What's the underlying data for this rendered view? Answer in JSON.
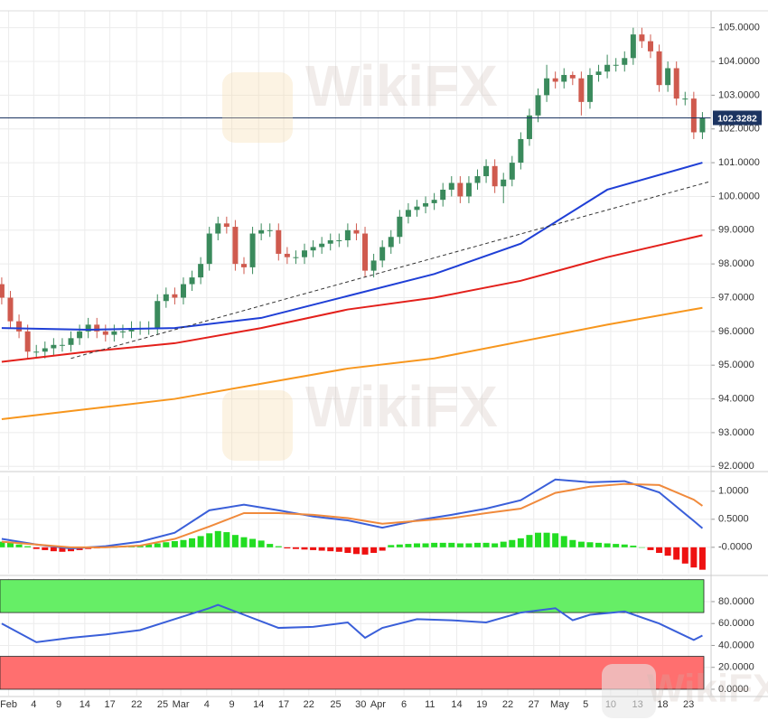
{
  "watermark": "WikiFX",
  "chart_data": [
    {
      "type": "candlestick",
      "up_color": "#3a8a5c",
      "down_color": "#cf5a4e",
      "open": [
        97.4,
        97.0,
        96.3,
        96.0,
        95.4,
        95.4,
        95.5,
        95.6,
        95.6,
        95.8,
        96.0,
        96.2,
        96.0,
        95.9,
        96.0,
        96.0,
        96.1,
        96.1,
        96.1,
        96.9,
        97.1,
        97.0,
        97.4,
        97.6,
        98.0,
        98.9,
        99.2,
        99.1,
        98.0,
        97.9,
        98.9,
        99.0,
        99.0,
        98.3,
        98.2,
        98.2,
        98.4,
        98.5,
        98.6,
        98.7,
        98.7,
        99.0,
        98.9,
        97.8,
        98.1,
        98.5,
        98.8,
        99.4,
        99.6,
        99.7,
        99.8,
        99.9,
        100.2,
        100.4,
        100.0,
        100.4,
        100.6,
        100.9,
        100.3,
        100.5,
        101.0,
        101.7,
        102.4,
        103.0,
        103.5,
        103.4,
        103.6,
        103.5,
        102.8,
        103.6,
        103.7,
        103.9,
        103.9,
        104.1,
        104.8,
        104.6,
        104.3,
        103.3,
        103.8,
        102.9,
        102.9,
        101.9
      ],
      "high": [
        97.6,
        97.2,
        96.5,
        96.2,
        95.6,
        95.7,
        95.8,
        95.8,
        96.0,
        96.2,
        96.4,
        96.4,
        96.2,
        96.2,
        96.2,
        96.3,
        96.3,
        96.3,
        97.1,
        97.3,
        97.3,
        97.6,
        97.8,
        98.2,
        99.1,
        99.4,
        99.4,
        99.3,
        98.2,
        99.1,
        99.2,
        99.2,
        99.2,
        98.5,
        98.4,
        98.6,
        98.7,
        98.8,
        98.9,
        98.9,
        99.2,
        99.2,
        99.1,
        98.3,
        98.7,
        99.0,
        99.6,
        99.8,
        99.9,
        100.0,
        100.1,
        100.4,
        100.6,
        100.6,
        100.6,
        100.8,
        101.1,
        101.1,
        100.7,
        101.2,
        101.9,
        102.6,
        103.2,
        103.9,
        103.7,
        103.8,
        103.7,
        103.7,
        103.8,
        103.9,
        104.2,
        104.1,
        104.3,
        105.0,
        105.0,
        104.8,
        104.5,
        104.0,
        104.0,
        103.1,
        103.1,
        102.5
      ],
      "low": [
        96.8,
        96.1,
        95.8,
        95.2,
        95.2,
        95.2,
        95.3,
        95.4,
        95.4,
        95.6,
        95.8,
        95.8,
        95.7,
        95.7,
        95.8,
        95.8,
        95.9,
        95.9,
        95.9,
        96.7,
        96.8,
        96.8,
        97.2,
        97.4,
        97.8,
        98.7,
        98.9,
        97.8,
        97.7,
        97.7,
        98.7,
        98.8,
        98.1,
        98.0,
        98.0,
        98.0,
        98.2,
        98.3,
        98.4,
        98.5,
        98.5,
        98.7,
        97.6,
        97.6,
        97.9,
        98.3,
        98.6,
        99.2,
        99.4,
        99.5,
        99.6,
        99.7,
        100.0,
        99.8,
        99.8,
        100.2,
        100.4,
        100.1,
        99.8,
        100.3,
        100.8,
        101.5,
        102.2,
        102.8,
        103.2,
        103.2,
        103.3,
        102.4,
        102.6,
        103.4,
        103.5,
        103.7,
        103.7,
        103.9,
        104.4,
        104.1,
        103.1,
        103.1,
        102.7,
        102.7,
        101.7,
        101.7
      ],
      "close": [
        97.0,
        96.3,
        96.0,
        95.4,
        95.4,
        95.5,
        95.6,
        95.6,
        95.8,
        96.0,
        96.2,
        96.0,
        95.9,
        96.0,
        96.0,
        96.1,
        96.1,
        96.1,
        96.9,
        97.1,
        97.0,
        97.4,
        97.6,
        98.0,
        98.9,
        99.2,
        99.1,
        98.0,
        97.9,
        98.9,
        99.0,
        99.0,
        98.3,
        98.2,
        98.2,
        98.4,
        98.5,
        98.6,
        98.7,
        98.7,
        99.0,
        98.9,
        97.8,
        98.1,
        98.5,
        98.8,
        99.4,
        99.6,
        99.7,
        99.8,
        99.9,
        100.2,
        100.4,
        100.0,
        100.4,
        100.6,
        100.9,
        100.3,
        100.5,
        101.0,
        101.7,
        102.4,
        103.0,
        103.5,
        103.4,
        103.6,
        103.5,
        102.8,
        103.6,
        103.7,
        103.9,
        103.9,
        104.1,
        104.8,
        104.6,
        104.3,
        103.3,
        103.8,
        102.9,
        102.9,
        101.9,
        102.33
      ],
      "series": [
        {
          "color": "#1f3fd6",
          "x": [
            0,
            10,
            20,
            30,
            40,
            50,
            60,
            70,
            81
          ],
          "values": [
            96.1,
            96.05,
            96.1,
            96.4,
            97.05,
            97.7,
            98.6,
            100.2,
            101.0
          ]
        },
        {
          "color": "#e3201b",
          "x": [
            0,
            10,
            20,
            30,
            40,
            50,
            60,
            70,
            81
          ],
          "values": [
            95.1,
            95.4,
            95.65,
            96.1,
            96.65,
            97.0,
            97.5,
            98.2,
            98.85
          ]
        },
        {
          "color": "#f7961d",
          "x": [
            0,
            10,
            20,
            30,
            40,
            50,
            60,
            70,
            81
          ],
          "values": [
            93.4,
            93.7,
            94.0,
            94.45,
            94.9,
            95.2,
            95.7,
            96.2,
            96.7
          ]
        },
        {
          "color": "#333333",
          "dash": true,
          "x": [
            8,
            82
          ],
          "values": [
            95.2,
            100.45
          ]
        }
      ],
      "last_price": 102.3282,
      "last_price_color": "#1c3461",
      "xlim": [
        -0.2,
        82
      ],
      "ylim": [
        91.9,
        105.5
      ],
      "yticks": [
        {
          "value": 92,
          "label": "92.0000"
        },
        {
          "value": 93,
          "label": "93.0000"
        },
        {
          "value": 94,
          "label": "94.0000"
        },
        {
          "value": 95,
          "label": "95.0000"
        },
        {
          "value": 96,
          "label": "96.0000"
        },
        {
          "value": 97,
          "label": "97.0000"
        },
        {
          "value": 98,
          "label": "98.0000"
        },
        {
          "value": 99,
          "label": "99.0000"
        },
        {
          "value": 100,
          "label": "100.0000"
        },
        {
          "value": 101,
          "label": "101.0000"
        },
        {
          "value": 102,
          "label": "102.0000"
        },
        {
          "value": 103,
          "label": "103.0000"
        },
        {
          "value": 104,
          "label": "104.0000"
        },
        {
          "value": 105,
          "label": "105.0000"
        }
      ],
      "grid": true
    },
    {
      "type": "macd",
      "hist": [
        0.1,
        0.08,
        0.05,
        0.02,
        -0.03,
        -0.05,
        -0.07,
        -0.08,
        -0.07,
        -0.05,
        -0.03,
        -0.02,
        -0.01,
        0.0,
        0.01,
        0.02,
        0.03,
        0.05,
        0.07,
        0.09,
        0.11,
        0.13,
        0.16,
        0.2,
        0.25,
        0.29,
        0.27,
        0.22,
        0.18,
        0.15,
        0.12,
        0.06,
        0.02,
        -0.02,
        -0.03,
        -0.04,
        -0.05,
        -0.06,
        -0.07,
        -0.08,
        -0.1,
        -0.12,
        -0.13,
        -0.1,
        -0.06,
        0.04,
        0.05,
        0.06,
        0.07,
        0.07,
        0.08,
        0.08,
        0.08,
        0.07,
        0.07,
        0.08,
        0.08,
        0.07,
        0.1,
        0.13,
        0.16,
        0.22,
        0.26,
        0.26,
        0.25,
        0.2,
        0.13,
        0.1,
        0.09,
        0.08,
        0.07,
        0.06,
        0.05,
        0.03,
        0.0,
        -0.05,
        -0.1,
        -0.15,
        -0.22,
        -0.29,
        -0.36,
        -0.4
      ],
      "hist_up_color": "#22dd22",
      "hist_down_color": "#ee1111",
      "series": [
        {
          "color": "#3a5fd9",
          "x": [
            0,
            4,
            8,
            12,
            16,
            20,
            24,
            28,
            32,
            36,
            40,
            44,
            48,
            52,
            56,
            60,
            64,
            68,
            72,
            76,
            80,
            81
          ],
          "values": [
            0.15,
            0.05,
            -0.02,
            0.02,
            0.1,
            0.26,
            0.66,
            0.76,
            0.66,
            0.55,
            0.48,
            0.35,
            0.48,
            0.58,
            0.69,
            0.84,
            1.21,
            1.16,
            1.18,
            0.98,
            0.47,
            0.34
          ]
        },
        {
          "color": "#f08a3c",
          "x": [
            0,
            4,
            8,
            12,
            16,
            20,
            24,
            28,
            32,
            36,
            40,
            44,
            48,
            52,
            56,
            60,
            64,
            68,
            72,
            76,
            80,
            81
          ],
          "values": [
            0.1,
            0.05,
            0.0,
            0.0,
            0.03,
            0.15,
            0.37,
            0.61,
            0.61,
            0.58,
            0.52,
            0.42,
            0.47,
            0.52,
            0.61,
            0.69,
            0.97,
            1.08,
            1.13,
            1.11,
            0.85,
            0.74
          ]
        }
      ],
      "xlim": [
        -0.2,
        82
      ],
      "ylim": [
        -0.47,
        1.27
      ],
      "yticks": [
        {
          "value": 0,
          "label": "-0.0000"
        },
        {
          "value": 0.5,
          "label": "0.5000"
        },
        {
          "value": 1,
          "label": "1.0000"
        }
      ],
      "grid": true
    },
    {
      "type": "rsi",
      "bands": [
        {
          "range": [
            70,
            100
          ],
          "color": "#66ee66"
        },
        {
          "range": [
            0,
            30
          ],
          "color": "#ff6f6f"
        }
      ],
      "series": [
        {
          "color": "#3a5fd9",
          "x": [
            0,
            4,
            8,
            12,
            16,
            20,
            24,
            25,
            28,
            32,
            36,
            40,
            42,
            44,
            48,
            52,
            56,
            60,
            64,
            66,
            68,
            72,
            76,
            80,
            81
          ],
          "values": [
            60,
            43,
            47,
            50,
            54,
            64,
            74,
            77,
            68,
            56,
            57,
            61,
            47,
            56,
            64,
            63,
            61,
            70,
            74,
            63,
            68,
            71,
            60,
            45,
            49
          ]
        }
      ],
      "xlim": [
        -0.2,
        82
      ],
      "ylim": [
        -5.8,
        101.4
      ],
      "yticks": [
        {
          "value": 0,
          "label": "0.0000"
        },
        {
          "value": 20,
          "label": "20.0000"
        },
        {
          "value": 40,
          "label": "40.0000"
        },
        {
          "value": 60,
          "label": "60.0000"
        },
        {
          "value": 80,
          "label": "80.0000"
        }
      ],
      "xticks": [
        {
          "value": 0.8,
          "label": "Feb"
        },
        {
          "value": 3.7,
          "label": "4"
        },
        {
          "value": 6.6,
          "label": "9"
        },
        {
          "value": 9.6,
          "label": "14"
        },
        {
          "value": 12.5,
          "label": "17"
        },
        {
          "value": 15.6,
          "label": "22"
        },
        {
          "value": 18.6,
          "label": "25"
        },
        {
          "value": 20.7,
          "label": "Mar"
        },
        {
          "value": 23.7,
          "label": "4"
        },
        {
          "value": 26.6,
          "label": "9"
        },
        {
          "value": 29.7,
          "label": "14"
        },
        {
          "value": 32.6,
          "label": "17"
        },
        {
          "value": 35.5,
          "label": "22"
        },
        {
          "value": 38.6,
          "label": "25"
        },
        {
          "value": 41.5,
          "label": "30"
        },
        {
          "value": 43.5,
          "label": "Apr"
        },
        {
          "value": 46.5,
          "label": "6"
        },
        {
          "value": 49.5,
          "label": "11"
        },
        {
          "value": 52.6,
          "label": "14"
        },
        {
          "value": 55.5,
          "label": "19"
        },
        {
          "value": 58.5,
          "label": "22"
        },
        {
          "value": 61.5,
          "label": "27"
        },
        {
          "value": 64.5,
          "label": "May"
        },
        {
          "value": 67.5,
          "label": "5"
        },
        {
          "value": 70.4,
          "label": "10"
        },
        {
          "value": 73.5,
          "label": "13"
        },
        {
          "value": 76.4,
          "label": "18"
        },
        {
          "value": 79.4,
          "label": "23"
        }
      ],
      "grid": true
    }
  ]
}
